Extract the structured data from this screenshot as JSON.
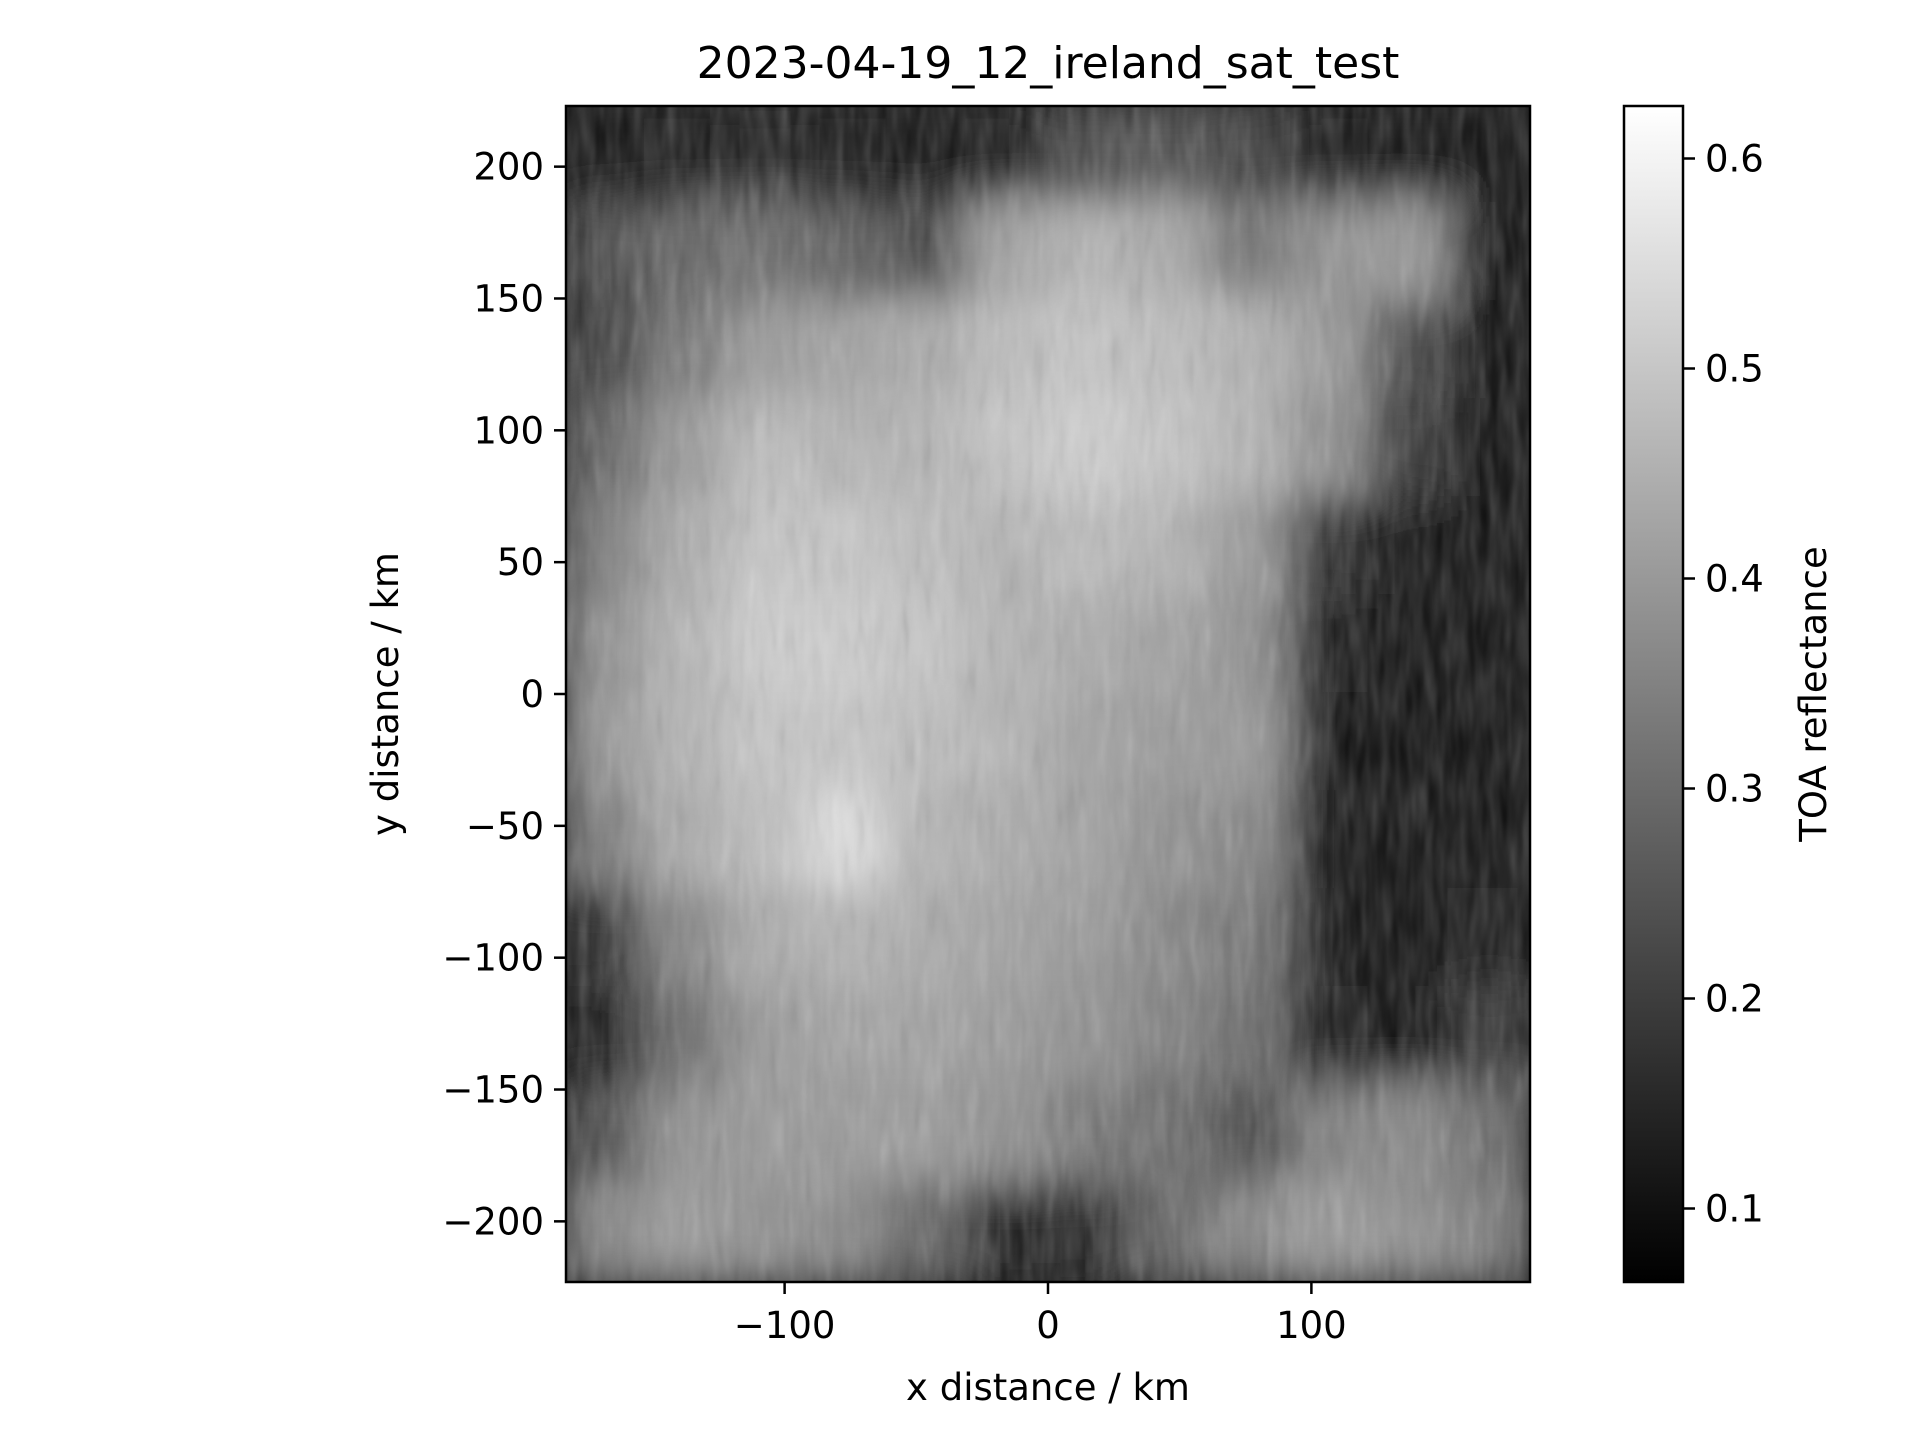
{
  "chart_data": {
    "type": "heatmap",
    "title": "2023-04-19_12_ireland_sat_test",
    "xlabel": "x distance / km",
    "ylabel": "y distance / km",
    "xlim": [
      -183,
      183
    ],
    "ylim": [
      -223,
      223
    ],
    "x_ticks": [
      -100,
      0,
      100
    ],
    "y_ticks": [
      200,
      150,
      100,
      50,
      0,
      -50,
      -100,
      -150,
      -200
    ],
    "x_tick_labels": [
      "−100",
      "0",
      "100"
    ],
    "y_tick_labels": [
      "200",
      "150",
      "100",
      "50",
      "0",
      "−50",
      "−100",
      "−150",
      "−200"
    ],
    "colormap": "gray",
    "colorbar": {
      "label": "TOA reflectance",
      "range": [
        0.065,
        0.625
      ],
      "ticks": [
        0.1,
        0.2,
        0.3,
        0.4,
        0.5,
        0.6
      ],
      "tick_labels": [
        "0.1",
        "0.2",
        "0.3",
        "0.4",
        "0.5",
        "0.6"
      ]
    },
    "field": {
      "description_free": true,
      "grid": [
        [
          0.1,
          0.12,
          0.14,
          0.12,
          0.09,
          0.12,
          0.22,
          0.24,
          0.2,
          0.12,
          0.1,
          0.09
        ],
        [
          0.22,
          0.28,
          0.3,
          0.26,
          0.22,
          0.42,
          0.46,
          0.44,
          0.32,
          0.38,
          0.4,
          0.09
        ],
        [
          0.2,
          0.32,
          0.4,
          0.42,
          0.44,
          0.48,
          0.5,
          0.48,
          0.46,
          0.4,
          0.22,
          0.08
        ],
        [
          0.28,
          0.4,
          0.48,
          0.46,
          0.46,
          0.5,
          0.52,
          0.5,
          0.46,
          0.38,
          0.18,
          0.08
        ],
        [
          0.34,
          0.44,
          0.5,
          0.5,
          0.48,
          0.46,
          0.48,
          0.46,
          0.4,
          0.16,
          0.09,
          0.08
        ],
        [
          0.38,
          0.46,
          0.52,
          0.52,
          0.5,
          0.46,
          0.44,
          0.42,
          0.38,
          0.12,
          0.08,
          0.08
        ],
        [
          0.4,
          0.46,
          0.5,
          0.5,
          0.48,
          0.46,
          0.42,
          0.4,
          0.4,
          0.1,
          0.08,
          0.08
        ],
        [
          0.34,
          0.44,
          0.48,
          0.56,
          0.46,
          0.44,
          0.42,
          0.38,
          0.36,
          0.1,
          0.08,
          0.09
        ],
        [
          0.16,
          0.36,
          0.44,
          0.46,
          0.44,
          0.42,
          0.4,
          0.36,
          0.32,
          0.1,
          0.09,
          0.12
        ],
        [
          0.12,
          0.3,
          0.4,
          0.42,
          0.42,
          0.4,
          0.38,
          0.34,
          0.3,
          0.12,
          0.1,
          0.18
        ],
        [
          0.24,
          0.38,
          0.4,
          0.4,
          0.4,
          0.38,
          0.32,
          0.3,
          0.22,
          0.34,
          0.36,
          0.3
        ],
        [
          0.36,
          0.4,
          0.38,
          0.36,
          0.28,
          0.12,
          0.14,
          0.28,
          0.36,
          0.4,
          0.38,
          0.34
        ]
      ]
    }
  }
}
